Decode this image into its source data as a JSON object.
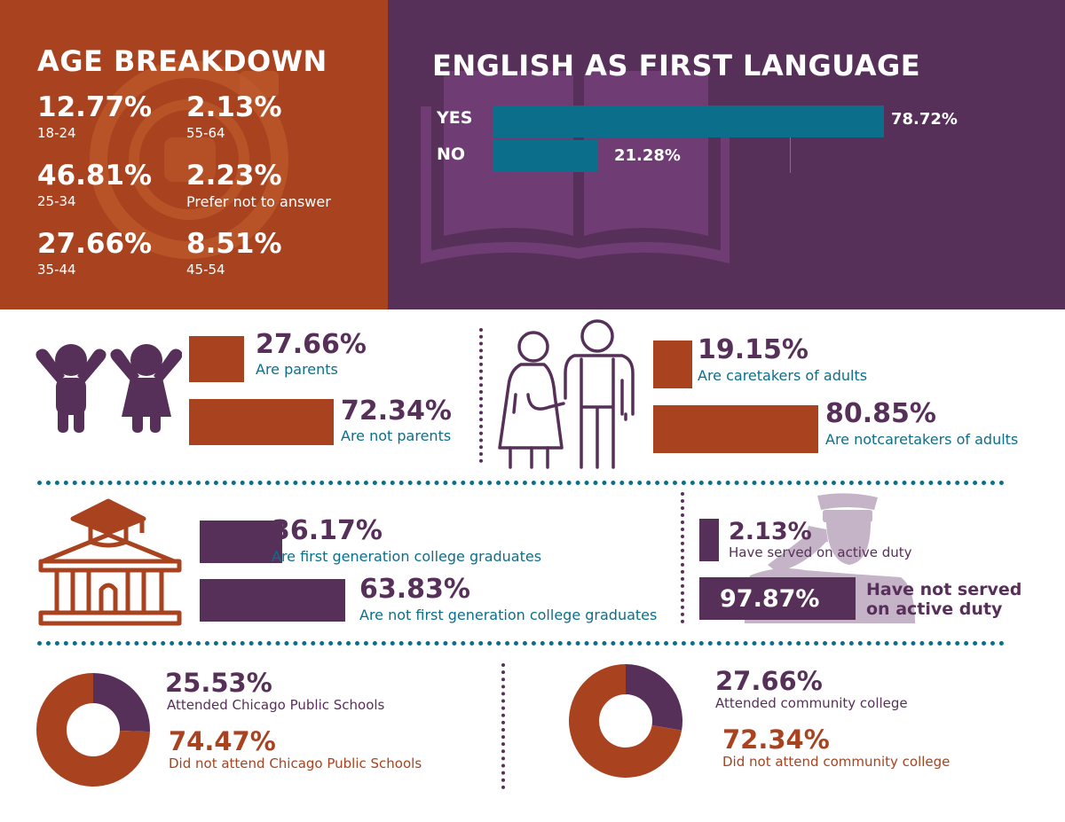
{
  "colors": {
    "orange": "#a8421f",
    "purple": "#573059",
    "teal": "#0b6f8c",
    "white": "#ffffff"
  },
  "age": {
    "title": "AGE BREAKDOWN",
    "items": [
      {
        "pct": "12.77%",
        "label": "18-24"
      },
      {
        "pct": "2.13%",
        "label": "55-64"
      },
      {
        "pct": "46.81%",
        "label": "25-34"
      },
      {
        "pct": "2.23%",
        "label": "Prefer not to answer"
      },
      {
        "pct": "27.66%",
        "label": "35-44"
      },
      {
        "pct": "8.51%",
        "label": "45-54"
      }
    ],
    "watermark_icon": "age-icon"
  },
  "english": {
    "title": "ENGLISH AS FIRST LANGUAGE",
    "icon": "open-book-icon",
    "rows": [
      {
        "label": "YES",
        "value_text": "78.72%",
        "value": 78.72
      },
      {
        "label": "NO",
        "value_text": "21.28%",
        "value": 21.28
      }
    ]
  },
  "parents": {
    "icon": "children-icon",
    "rows": [
      {
        "pct": "27.66%",
        "label": "Are parents",
        "value": 27.66
      },
      {
        "pct": "72.34%",
        "label": "Are not parents",
        "value": 72.34
      }
    ]
  },
  "caretakers": {
    "icon": "caretaker-icon",
    "rows": [
      {
        "pct": "19.15%",
        "label": "Are caretakers of adults",
        "value": 19.15
      },
      {
        "pct": "80.85%",
        "label": "Are notcaretakers of adults",
        "value": 80.85
      }
    ]
  },
  "college": {
    "icon": "university-icon",
    "rows": [
      {
        "pct": "36.17%",
        "label": "Are first generation college graduates",
        "value": 36.17
      },
      {
        "pct": "63.83%",
        "label": "Are not first generation college graduates",
        "value": 63.83
      }
    ]
  },
  "military": {
    "icon": "saluting-soldier-icon",
    "rows": [
      {
        "pct": "2.13%",
        "label": "Have served on active duty",
        "value": 2.13
      },
      {
        "pct": "97.87%",
        "label_line1": "Have not served",
        "label_line2": "on active duty",
        "value": 97.87
      }
    ]
  },
  "chart_data": [
    {
      "type": "bar",
      "categories": [
        "YES",
        "NO"
      ],
      "values": [
        78.72,
        21.28
      ],
      "title": "ENGLISH AS FIRST LANGUAGE"
    },
    {
      "type": "bar",
      "categories": [
        "Are parents",
        "Are not parents"
      ],
      "values": [
        27.66,
        72.34
      ]
    },
    {
      "type": "bar",
      "categories": [
        "Are caretakers of adults",
        "Are notcaretakers of adults"
      ],
      "values": [
        19.15,
        80.85
      ]
    },
    {
      "type": "bar",
      "categories": [
        "Are first generation college graduates",
        "Are not first generation college graduates"
      ],
      "values": [
        36.17,
        63.83
      ]
    },
    {
      "type": "bar",
      "categories": [
        "Have served on active duty",
        "Have not served on active duty"
      ],
      "values": [
        2.13,
        97.87
      ]
    },
    {
      "type": "pie",
      "categories": [
        "Attended Chicago Public Schools",
        "Did not attend Chicago Public Schools"
      ],
      "values": [
        25.53,
        74.47
      ]
    },
    {
      "type": "pie",
      "categories": [
        "Attended community college",
        "Did not attend community college"
      ],
      "values": [
        27.66,
        72.34
      ]
    }
  ],
  "cps": {
    "rows": [
      {
        "pct": "25.53%",
        "label": "Attended Chicago Public Schools",
        "value": 25.53
      },
      {
        "pct": "74.47%",
        "label": "Did not attend Chicago Public Schools",
        "value": 74.47
      }
    ]
  },
  "community": {
    "rows": [
      {
        "pct": "27.66%",
        "label": "Attended community college",
        "value": 27.66
      },
      {
        "pct": "72.34%",
        "label": "Did not attend community college",
        "value": 72.34
      }
    ]
  }
}
